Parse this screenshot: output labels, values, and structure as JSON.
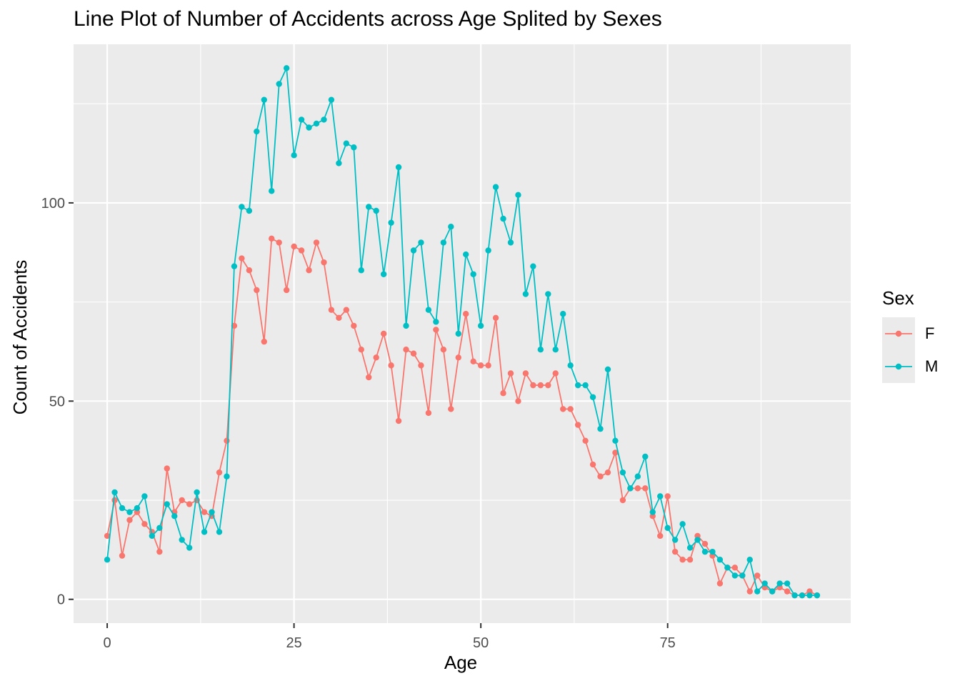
{
  "chart_data": {
    "type": "line",
    "title": "Line Plot of Number of Accidents across Age Splited by Sexes",
    "xlabel": "Age",
    "ylabel": "Count of Accidents",
    "xlim": [
      -4.5,
      99.5
    ],
    "ylim": [
      -6,
      140
    ],
    "x_ticks": [
      0,
      25,
      50,
      75
    ],
    "x_tick_labels": [
      "0",
      "25",
      "50",
      "75"
    ],
    "y_ticks": [
      0,
      50,
      100
    ],
    "y_tick_labels": [
      "0",
      "50",
      "100"
    ],
    "grid": true,
    "legend": {
      "title": "Sex",
      "position": "right"
    },
    "series": [
      {
        "name": "F",
        "color": "#F8766D",
        "x": [
          0,
          1,
          2,
          3,
          4,
          5,
          6,
          7,
          8,
          9,
          10,
          11,
          12,
          13,
          14,
          15,
          16,
          17,
          18,
          19,
          20,
          21,
          22,
          23,
          24,
          25,
          26,
          27,
          28,
          29,
          30,
          31,
          32,
          33,
          34,
          35,
          36,
          37,
          38,
          39,
          40,
          41,
          42,
          43,
          44,
          45,
          46,
          47,
          48,
          49,
          50,
          51,
          52,
          53,
          54,
          55,
          56,
          57,
          58,
          59,
          60,
          61,
          62,
          63,
          64,
          65,
          66,
          67,
          68,
          69,
          70,
          71,
          72,
          73,
          74,
          75,
          76,
          77,
          78,
          79,
          80,
          81,
          82,
          83,
          84,
          85,
          86,
          87,
          88,
          89,
          90,
          91,
          92,
          93,
          94,
          95
        ],
        "values": [
          16,
          25,
          11,
          20,
          22,
          19,
          17,
          12,
          33,
          22,
          25,
          24,
          25,
          22,
          21,
          32,
          40,
          69,
          86,
          83,
          78,
          65,
          91,
          90,
          78,
          89,
          88,
          83,
          90,
          85,
          73,
          71,
          73,
          69,
          63,
          56,
          61,
          67,
          59,
          45,
          63,
          62,
          59,
          47,
          68,
          63,
          48,
          61,
          72,
          60,
          59,
          59,
          71,
          52,
          57,
          50,
          57,
          54,
          54,
          54,
          57,
          48,
          48,
          44,
          40,
          34,
          31,
          32,
          37,
          25,
          28,
          28,
          28,
          21,
          16,
          26,
          12,
          10,
          10,
          16,
          14,
          11,
          4,
          8,
          8,
          6,
          2,
          6,
          3,
          2,
          3,
          2,
          1,
          1,
          2,
          1
        ]
      },
      {
        "name": "M",
        "color": "#00BFC4",
        "x": [
          0,
          1,
          2,
          3,
          4,
          5,
          6,
          7,
          8,
          9,
          10,
          11,
          12,
          13,
          14,
          15,
          16,
          17,
          18,
          19,
          20,
          21,
          22,
          23,
          24,
          25,
          26,
          27,
          28,
          29,
          30,
          31,
          32,
          33,
          34,
          35,
          36,
          37,
          38,
          39,
          40,
          41,
          42,
          43,
          44,
          45,
          46,
          47,
          48,
          49,
          50,
          51,
          52,
          53,
          54,
          55,
          56,
          57,
          58,
          59,
          60,
          61,
          62,
          63,
          64,
          65,
          66,
          67,
          68,
          69,
          70,
          71,
          72,
          73,
          74,
          75,
          76,
          77,
          78,
          79,
          80,
          81,
          82,
          83,
          84,
          85,
          86,
          87,
          88,
          89,
          90,
          91,
          92,
          93,
          94,
          95
        ],
        "values": [
          10,
          27,
          23,
          22,
          23,
          26,
          16,
          18,
          24,
          21,
          15,
          13,
          27,
          17,
          22,
          17,
          31,
          84,
          99,
          98,
          118,
          126,
          103,
          130,
          134,
          112,
          121,
          119,
          120,
          121,
          126,
          110,
          115,
          114,
          83,
          99,
          98,
          82,
          95,
          109,
          69,
          88,
          90,
          73,
          70,
          90,
          94,
          67,
          87,
          82,
          69,
          88,
          104,
          96,
          90,
          102,
          77,
          84,
          63,
          77,
          63,
          72,
          59,
          54,
          54,
          51,
          43,
          58,
          40,
          32,
          28,
          31,
          36,
          22,
          26,
          18,
          15,
          19,
          13,
          15,
          12,
          12,
          10,
          8,
          6,
          6,
          10,
          2,
          4,
          2,
          4,
          4,
          1,
          1,
          1,
          1
        ]
      }
    ]
  }
}
